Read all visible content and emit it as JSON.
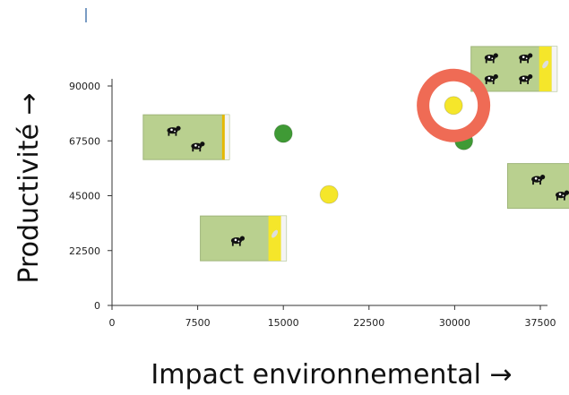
{
  "chart_data": {
    "type": "scatter",
    "title": "",
    "xlabel": "Impact environnemental →",
    "ylabel": "Productivité →",
    "xlim": [
      0,
      37500
    ],
    "ylim": [
      0,
      90000
    ],
    "x_ticks": [
      "0",
      "7500",
      "15000",
      "22500",
      "30000",
      "37500"
    ],
    "y_ticks": [
      "0",
      "22500",
      "45000",
      "67500",
      "90000"
    ],
    "grid": false,
    "points": [
      {
        "x": 15000,
        "y": 70500,
        "color": "#3f9a35"
      },
      {
        "x": 19000,
        "y": 45500,
        "color": "#f5e62a"
      },
      {
        "x": 30800,
        "y": 67500,
        "color": "#3f9a35"
      },
      {
        "x": 29900,
        "y": 82000,
        "color": "#f5e62a",
        "highlighted": true
      }
    ],
    "cards": [
      {
        "x_center": 6500,
        "y_center": 69000,
        "cows": 2,
        "yellow_strip": false,
        "icon": "cow-icon"
      },
      {
        "x_center": 11500,
        "y_center": 27500,
        "cows": 1,
        "yellow_strip": true,
        "icon": "cow-icon"
      },
      {
        "x_center": 35200,
        "y_center": 97000,
        "cows": 4,
        "yellow_strip": true,
        "icon": "cow-icon"
      },
      {
        "x_center": 38400,
        "y_center": 49000,
        "cows": 2,
        "yellow_strip": false,
        "icon": "cow-icon"
      }
    ],
    "colors": {
      "highlight_ring": "#ef6b55",
      "card_fill": "#b9d08f",
      "green_point": "#3f9a35",
      "yellow_point": "#f5e62a"
    }
  }
}
